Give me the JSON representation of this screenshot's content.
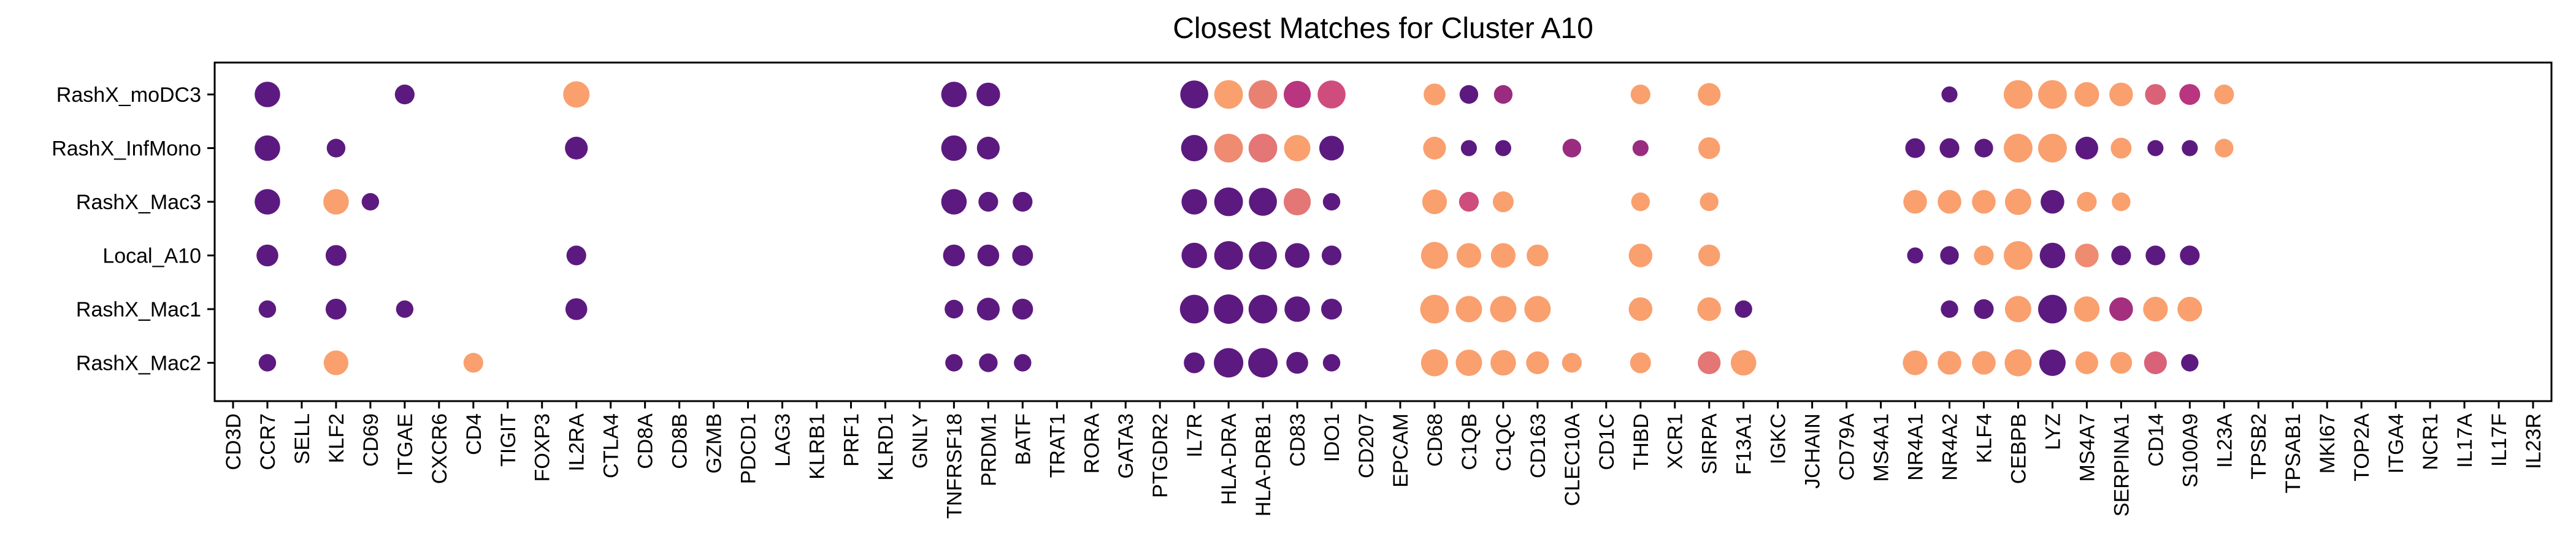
{
  "chart_data": {
    "type": "dotplot",
    "title": "Closest Matches for Cluster A10",
    "xlabel": "",
    "ylabel": "",
    "genes": [
      "CD3D",
      "CCR7",
      "SELL",
      "KLF2",
      "CD69",
      "ITGAE",
      "CXCR6",
      "CD4",
      "TIGIT",
      "FOXP3",
      "IL2RA",
      "CTLA4",
      "CD8A",
      "CD8B",
      "GZMB",
      "PDCD1",
      "LAG3",
      "KLRB1",
      "PRF1",
      "KLRD1",
      "GNLY",
      "TNFRSF18",
      "PRDM1",
      "BATF",
      "TRAT1",
      "RORA",
      "GATA3",
      "PTGDR2",
      "IL7R",
      "HLA-DRA",
      "HLA-DRB1",
      "CD83",
      "IDO1",
      "CD207",
      "EPCAM",
      "CD68",
      "C1QB",
      "C1QC",
      "CD163",
      "CLEC10A",
      "CD1C",
      "THBD",
      "XCR1",
      "SIRPA",
      "F13A1",
      "IGKC",
      "JCHAIN",
      "CD79A",
      "MS4A1",
      "NR4A1",
      "NR4A2",
      "KLF4",
      "CEBPB",
      "LYZ",
      "MS4A7",
      "SERPINA1",
      "CD14",
      "S100A9",
      "IL23A",
      "TPSB2",
      "TPSAB1",
      "MKI67",
      "TOP2A",
      "ITGA4",
      "NCR1",
      "IL17A",
      "IL17F",
      "IL23R"
    ],
    "rows": [
      "RashX_moDC3",
      "RashX_InfMono",
      "RashX_Mac3",
      "Local_A10",
      "RashX_Mac1",
      "RashX_Mac2"
    ],
    "value_encoding": "size = fraction of cells expressing (0-1); color = scaled mean expression (0 = dark purple, 1 = light orange)",
    "points": [
      {
        "row": "RashX_moDC3",
        "gene": "CCR7",
        "size": 0.75,
        "color": 0.0
      },
      {
        "row": "RashX_moDC3",
        "gene": "ITGAE",
        "size": 0.45,
        "color": 0.0
      },
      {
        "row": "RashX_moDC3",
        "gene": "IL2RA",
        "size": 0.8,
        "color": 1.0
      },
      {
        "row": "RashX_moDC3",
        "gene": "TNFRSF18",
        "size": 0.75,
        "color": 0.0
      },
      {
        "row": "RashX_moDC3",
        "gene": "PRDM1",
        "size": 0.65,
        "color": 0.0
      },
      {
        "row": "RashX_moDC3",
        "gene": "IL7R",
        "size": 0.9,
        "color": 0.0
      },
      {
        "row": "RashX_moDC3",
        "gene": "HLA-DRA",
        "size": 0.95,
        "color": 1.0
      },
      {
        "row": "RashX_moDC3",
        "gene": "HLA-DRB1",
        "size": 0.95,
        "color": 0.85
      },
      {
        "row": "RashX_moDC3",
        "gene": "CD83",
        "size": 0.85,
        "color": 0.45
      },
      {
        "row": "RashX_moDC3",
        "gene": "IDO1",
        "size": 0.9,
        "color": 0.6
      },
      {
        "row": "RashX_moDC3",
        "gene": "CD68",
        "size": 0.55,
        "color": 1.0
      },
      {
        "row": "RashX_moDC3",
        "gene": "C1QB",
        "size": 0.4,
        "color": 0.0
      },
      {
        "row": "RashX_moDC3",
        "gene": "C1QC",
        "size": 0.4,
        "color": 0.3
      },
      {
        "row": "RashX_moDC3",
        "gene": "THBD",
        "size": 0.45,
        "color": 1.0
      },
      {
        "row": "RashX_moDC3",
        "gene": "SIRPA",
        "size": 0.6,
        "color": 1.0
      },
      {
        "row": "RashX_moDC3",
        "gene": "NR4A2",
        "size": 0.3,
        "color": 0.0
      },
      {
        "row": "RashX_moDC3",
        "gene": "CEBPB",
        "size": 0.95,
        "color": 1.0
      },
      {
        "row": "RashX_moDC3",
        "gene": "LYZ",
        "size": 0.95,
        "color": 1.0
      },
      {
        "row": "RashX_moDC3",
        "gene": "MS4A7",
        "size": 0.7,
        "color": 1.0
      },
      {
        "row": "RashX_moDC3",
        "gene": "SERPINA1",
        "size": 0.65,
        "color": 1.0
      },
      {
        "row": "RashX_moDC3",
        "gene": "CD14",
        "size": 0.5,
        "color": 0.7
      },
      {
        "row": "RashX_moDC3",
        "gene": "S100A9",
        "size": 0.5,
        "color": 0.45
      },
      {
        "row": "RashX_moDC3",
        "gene": "IL23A",
        "size": 0.45,
        "color": 1.0
      },
      {
        "row": "RashX_InfMono",
        "gene": "CCR7",
        "size": 0.75,
        "color": 0.0
      },
      {
        "row": "RashX_InfMono",
        "gene": "KLF2",
        "size": 0.4,
        "color": 0.0
      },
      {
        "row": "RashX_InfMono",
        "gene": "IL2RA",
        "size": 0.6,
        "color": 0.0
      },
      {
        "row": "RashX_InfMono",
        "gene": "TNFRSF18",
        "size": 0.75,
        "color": 0.0
      },
      {
        "row": "RashX_InfMono",
        "gene": "PRDM1",
        "size": 0.6,
        "color": 0.0
      },
      {
        "row": "RashX_InfMono",
        "gene": "IL7R",
        "size": 0.8,
        "color": 0.0
      },
      {
        "row": "RashX_InfMono",
        "gene": "HLA-DRA",
        "size": 0.95,
        "color": 0.9
      },
      {
        "row": "RashX_InfMono",
        "gene": "HLA-DRB1",
        "size": 0.95,
        "color": 0.8
      },
      {
        "row": "RashX_InfMono",
        "gene": "CD83",
        "size": 0.8,
        "color": 1.0
      },
      {
        "row": "RashX_InfMono",
        "gene": "IDO1",
        "size": 0.7,
        "color": 0.0
      },
      {
        "row": "RashX_InfMono",
        "gene": "CD68",
        "size": 0.6,
        "color": 1.0
      },
      {
        "row": "RashX_InfMono",
        "gene": "C1QB",
        "size": 0.3,
        "color": 0.0
      },
      {
        "row": "RashX_InfMono",
        "gene": "C1QC",
        "size": 0.3,
        "color": 0.0
      },
      {
        "row": "RashX_InfMono",
        "gene": "CLEC10A",
        "size": 0.4,
        "color": 0.3
      },
      {
        "row": "RashX_InfMono",
        "gene": "THBD",
        "size": 0.3,
        "color": 0.3
      },
      {
        "row": "RashX_InfMono",
        "gene": "SIRPA",
        "size": 0.55,
        "color": 1.0
      },
      {
        "row": "RashX_InfMono",
        "gene": "NR4A1",
        "size": 0.45,
        "color": 0.0
      },
      {
        "row": "RashX_InfMono",
        "gene": "NR4A2",
        "size": 0.45,
        "color": 0.0
      },
      {
        "row": "RashX_InfMono",
        "gene": "KLF4",
        "size": 0.4,
        "color": 0.0
      },
      {
        "row": "RashX_InfMono",
        "gene": "CEBPB",
        "size": 0.95,
        "color": 1.0
      },
      {
        "row": "RashX_InfMono",
        "gene": "LYZ",
        "size": 0.95,
        "color": 1.0
      },
      {
        "row": "RashX_InfMono",
        "gene": "MS4A7",
        "size": 0.6,
        "color": 0.0
      },
      {
        "row": "RashX_InfMono",
        "gene": "SERPINA1",
        "size": 0.5,
        "color": 1.0
      },
      {
        "row": "RashX_InfMono",
        "gene": "CD14",
        "size": 0.3,
        "color": 0.0
      },
      {
        "row": "RashX_InfMono",
        "gene": "S100A9",
        "size": 0.3,
        "color": 0.0
      },
      {
        "row": "RashX_InfMono",
        "gene": "IL23A",
        "size": 0.4,
        "color": 1.0
      },
      {
        "row": "RashX_Mac3",
        "gene": "CCR7",
        "size": 0.75,
        "color": 0.0
      },
      {
        "row": "RashX_Mac3",
        "gene": "KLF2",
        "size": 0.75,
        "color": 1.0
      },
      {
        "row": "RashX_Mac3",
        "gene": "CD69",
        "size": 0.35,
        "color": 0.0
      },
      {
        "row": "RashX_Mac3",
        "gene": "TNFRSF18",
        "size": 0.75,
        "color": 0.0
      },
      {
        "row": "RashX_Mac3",
        "gene": "PRDM1",
        "size": 0.45,
        "color": 0.0
      },
      {
        "row": "RashX_Mac3",
        "gene": "BATF",
        "size": 0.45,
        "color": 0.0
      },
      {
        "row": "RashX_Mac3",
        "gene": "IL7R",
        "size": 0.75,
        "color": 0.0
      },
      {
        "row": "RashX_Mac3",
        "gene": "HLA-DRA",
        "size": 0.95,
        "color": 0.0
      },
      {
        "row": "RashX_Mac3",
        "gene": "HLA-DRB1",
        "size": 0.9,
        "color": 0.0
      },
      {
        "row": "RashX_Mac3",
        "gene": "CD83",
        "size": 0.85,
        "color": 0.8
      },
      {
        "row": "RashX_Mac3",
        "gene": "IDO1",
        "size": 0.35,
        "color": 0.0
      },
      {
        "row": "RashX_Mac3",
        "gene": "CD68",
        "size": 0.7,
        "color": 1.0
      },
      {
        "row": "RashX_Mac3",
        "gene": "C1QB",
        "size": 0.45,
        "color": 0.6
      },
      {
        "row": "RashX_Mac3",
        "gene": "C1QC",
        "size": 0.5,
        "color": 1.0
      },
      {
        "row": "RashX_Mac3",
        "gene": "THBD",
        "size": 0.4,
        "color": 1.0
      },
      {
        "row": "RashX_Mac3",
        "gene": "SIRPA",
        "size": 0.4,
        "color": 1.0
      },
      {
        "row": "RashX_Mac3",
        "gene": "NR4A1",
        "size": 0.65,
        "color": 1.0
      },
      {
        "row": "RashX_Mac3",
        "gene": "NR4A2",
        "size": 0.65,
        "color": 1.0
      },
      {
        "row": "RashX_Mac3",
        "gene": "KLF4",
        "size": 0.65,
        "color": 1.0
      },
      {
        "row": "RashX_Mac3",
        "gene": "CEBPB",
        "size": 0.8,
        "color": 1.0
      },
      {
        "row": "RashX_Mac3",
        "gene": "LYZ",
        "size": 0.65,
        "color": 0.0
      },
      {
        "row": "RashX_Mac3",
        "gene": "MS4A7",
        "size": 0.45,
        "color": 1.0
      },
      {
        "row": "RashX_Mac3",
        "gene": "SERPINA1",
        "size": 0.4,
        "color": 1.0
      },
      {
        "row": "Local_A10",
        "gene": "CCR7",
        "size": 0.55,
        "color": 0.0
      },
      {
        "row": "Local_A10",
        "gene": "KLF2",
        "size": 0.5,
        "color": 0.0
      },
      {
        "row": "Local_A10",
        "gene": "IL2RA",
        "size": 0.45,
        "color": 0.0
      },
      {
        "row": "Local_A10",
        "gene": "TNFRSF18",
        "size": 0.55,
        "color": 0.0
      },
      {
        "row": "Local_A10",
        "gene": "PRDM1",
        "size": 0.55,
        "color": 0.0
      },
      {
        "row": "Local_A10",
        "gene": "BATF",
        "size": 0.5,
        "color": 0.0
      },
      {
        "row": "Local_A10",
        "gene": "IL7R",
        "size": 0.75,
        "color": 0.0
      },
      {
        "row": "Local_A10",
        "gene": "HLA-DRA",
        "size": 0.95,
        "color": 0.0
      },
      {
        "row": "Local_A10",
        "gene": "HLA-DRB1",
        "size": 0.9,
        "color": 0.0
      },
      {
        "row": "Local_A10",
        "gene": "CD83",
        "size": 0.7,
        "color": 0.0
      },
      {
        "row": "Local_A10",
        "gene": "IDO1",
        "size": 0.45,
        "color": 0.0
      },
      {
        "row": "Local_A10",
        "gene": "CD68",
        "size": 0.85,
        "color": 1.0
      },
      {
        "row": "Local_A10",
        "gene": "C1QB",
        "size": 0.7,
        "color": 1.0
      },
      {
        "row": "Local_A10",
        "gene": "C1QC",
        "size": 0.7,
        "color": 1.0
      },
      {
        "row": "Local_A10",
        "gene": "CD163",
        "size": 0.55,
        "color": 1.0
      },
      {
        "row": "Local_A10",
        "gene": "THBD",
        "size": 0.65,
        "color": 1.0
      },
      {
        "row": "Local_A10",
        "gene": "SIRPA",
        "size": 0.55,
        "color": 1.0
      },
      {
        "row": "Local_A10",
        "gene": "NR4A1",
        "size": 0.3,
        "color": 0.0
      },
      {
        "row": "Local_A10",
        "gene": "NR4A2",
        "size": 0.4,
        "color": 0.0
      },
      {
        "row": "Local_A10",
        "gene": "KLF4",
        "size": 0.45,
        "color": 1.0
      },
      {
        "row": "Local_A10",
        "gene": "CEBPB",
        "size": 0.95,
        "color": 1.0
      },
      {
        "row": "Local_A10",
        "gene": "LYZ",
        "size": 0.75,
        "color": 0.0
      },
      {
        "row": "Local_A10",
        "gene": "MS4A7",
        "size": 0.65,
        "color": 0.9
      },
      {
        "row": "Local_A10",
        "gene": "SERPINA1",
        "size": 0.45,
        "color": 0.0
      },
      {
        "row": "Local_A10",
        "gene": "CD14",
        "size": 0.45,
        "color": 0.0
      },
      {
        "row": "Local_A10",
        "gene": "S100A9",
        "size": 0.45,
        "color": 0.0
      },
      {
        "row": "RashX_Mac1",
        "gene": "CCR7",
        "size": 0.35,
        "color": 0.0
      },
      {
        "row": "RashX_Mac1",
        "gene": "KLF2",
        "size": 0.5,
        "color": 0.0
      },
      {
        "row": "RashX_Mac1",
        "gene": "ITGAE",
        "size": 0.35,
        "color": 0.0
      },
      {
        "row": "RashX_Mac1",
        "gene": "IL2RA",
        "size": 0.55,
        "color": 0.0
      },
      {
        "row": "RashX_Mac1",
        "gene": "TNFRSF18",
        "size": 0.4,
        "color": 0.0
      },
      {
        "row": "RashX_Mac1",
        "gene": "PRDM1",
        "size": 0.6,
        "color": 0.0
      },
      {
        "row": "RashX_Mac1",
        "gene": "BATF",
        "size": 0.5,
        "color": 0.0
      },
      {
        "row": "RashX_Mac1",
        "gene": "IL7R",
        "size": 0.95,
        "color": 0.0
      },
      {
        "row": "RashX_Mac1",
        "gene": "HLA-DRA",
        "size": 1.0,
        "color": 0.0
      },
      {
        "row": "RashX_Mac1",
        "gene": "HLA-DRB1",
        "size": 0.95,
        "color": 0.0
      },
      {
        "row": "RashX_Mac1",
        "gene": "CD83",
        "size": 0.75,
        "color": 0.0
      },
      {
        "row": "RashX_Mac1",
        "gene": "IDO1",
        "size": 0.5,
        "color": 0.0
      },
      {
        "row": "RashX_Mac1",
        "gene": "CD68",
        "size": 0.95,
        "color": 1.0
      },
      {
        "row": "RashX_Mac1",
        "gene": "C1QB",
        "size": 0.8,
        "color": 1.0
      },
      {
        "row": "RashX_Mac1",
        "gene": "C1QC",
        "size": 0.8,
        "color": 1.0
      },
      {
        "row": "RashX_Mac1",
        "gene": "CD163",
        "size": 0.8,
        "color": 1.0
      },
      {
        "row": "RashX_Mac1",
        "gene": "THBD",
        "size": 0.65,
        "color": 1.0
      },
      {
        "row": "RashX_Mac1",
        "gene": "SIRPA",
        "size": 0.65,
        "color": 1.0
      },
      {
        "row": "RashX_Mac1",
        "gene": "F13A1",
        "size": 0.35,
        "color": 0.0
      },
      {
        "row": "RashX_Mac1",
        "gene": "NR4A2",
        "size": 0.35,
        "color": 0.0
      },
      {
        "row": "RashX_Mac1",
        "gene": "KLF4",
        "size": 0.45,
        "color": 0.0
      },
      {
        "row": "RashX_Mac1",
        "gene": "CEBPB",
        "size": 0.8,
        "color": 1.0
      },
      {
        "row": "RashX_Mac1",
        "gene": "LYZ",
        "size": 0.95,
        "color": 0.0
      },
      {
        "row": "RashX_Mac1",
        "gene": "MS4A7",
        "size": 0.75,
        "color": 1.0
      },
      {
        "row": "RashX_Mac1",
        "gene": "SERPINA1",
        "size": 0.65,
        "color": 0.35
      },
      {
        "row": "RashX_Mac1",
        "gene": "CD14",
        "size": 0.7,
        "color": 1.0
      },
      {
        "row": "RashX_Mac1",
        "gene": "S100A9",
        "size": 0.7,
        "color": 1.0
      },
      {
        "row": "RashX_Mac2",
        "gene": "CCR7",
        "size": 0.35,
        "color": 0.0
      },
      {
        "row": "RashX_Mac2",
        "gene": "KLF2",
        "size": 0.7,
        "color": 1.0
      },
      {
        "row": "RashX_Mac2",
        "gene": "CD4",
        "size": 0.45,
        "color": 1.0
      },
      {
        "row": "RashX_Mac2",
        "gene": "TNFRSF18",
        "size": 0.35,
        "color": 0.0
      },
      {
        "row": "RashX_Mac2",
        "gene": "PRDM1",
        "size": 0.4,
        "color": 0.0
      },
      {
        "row": "RashX_Mac2",
        "gene": "BATF",
        "size": 0.35,
        "color": 0.0
      },
      {
        "row": "RashX_Mac2",
        "gene": "IL7R",
        "size": 0.5,
        "color": 0.0
      },
      {
        "row": "RashX_Mac2",
        "gene": "HLA-DRA",
        "size": 1.0,
        "color": 0.0
      },
      {
        "row": "RashX_Mac2",
        "gene": "HLA-DRB1",
        "size": 1.0,
        "color": 0.0
      },
      {
        "row": "RashX_Mac2",
        "gene": "CD83",
        "size": 0.55,
        "color": 0.0
      },
      {
        "row": "RashX_Mac2",
        "gene": "IDO1",
        "size": 0.35,
        "color": 0.0
      },
      {
        "row": "RashX_Mac2",
        "gene": "CD68",
        "size": 0.85,
        "color": 1.0
      },
      {
        "row": "RashX_Mac2",
        "gene": "C1QB",
        "size": 0.8,
        "color": 1.0
      },
      {
        "row": "RashX_Mac2",
        "gene": "C1QC",
        "size": 0.75,
        "color": 1.0
      },
      {
        "row": "RashX_Mac2",
        "gene": "CD163",
        "size": 0.6,
        "color": 1.0
      },
      {
        "row": "RashX_Mac2",
        "gene": "CLEC10A",
        "size": 0.45,
        "color": 1.0
      },
      {
        "row": "RashX_Mac2",
        "gene": "THBD",
        "size": 0.5,
        "color": 1.0
      },
      {
        "row": "RashX_Mac2",
        "gene": "SIRPA",
        "size": 0.6,
        "color": 0.8
      },
      {
        "row": "RashX_Mac2",
        "gene": "F13A1",
        "size": 0.75,
        "color": 1.0
      },
      {
        "row": "RashX_Mac2",
        "gene": "NR4A1",
        "size": 0.7,
        "color": 1.0
      },
      {
        "row": "RashX_Mac2",
        "gene": "NR4A2",
        "size": 0.65,
        "color": 1.0
      },
      {
        "row": "RashX_Mac2",
        "gene": "KLF4",
        "size": 0.65,
        "color": 1.0
      },
      {
        "row": "RashX_Mac2",
        "gene": "CEBPB",
        "size": 0.85,
        "color": 1.0
      },
      {
        "row": "RashX_Mac2",
        "gene": "LYZ",
        "size": 0.8,
        "color": 0.0
      },
      {
        "row": "RashX_Mac2",
        "gene": "MS4A7",
        "size": 0.6,
        "color": 1.0
      },
      {
        "row": "RashX_Mac2",
        "gene": "SERPINA1",
        "size": 0.55,
        "color": 1.0
      },
      {
        "row": "RashX_Mac2",
        "gene": "CD14",
        "size": 0.6,
        "color": 0.7
      },
      {
        "row": "RashX_Mac2",
        "gene": "S100A9",
        "size": 0.35,
        "color": 0.0
      }
    ],
    "colors": {
      "low": "#5c1a80",
      "mid": "#c4387f",
      "high": "#f9a06e",
      "axis": "#000000",
      "background": "#ffffff"
    },
    "grid": false,
    "legend": "none"
  }
}
